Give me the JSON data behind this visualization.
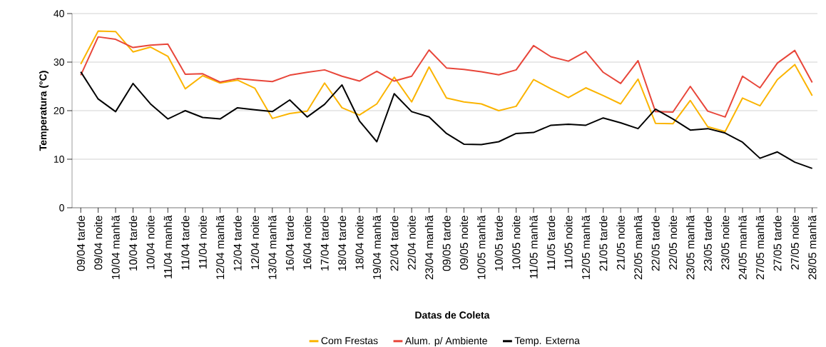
{
  "chart_data": {
    "type": "line",
    "xlabel": "Datas de Coleta",
    "ylabel": "Temperatura (°C)",
    "categories": [
      "09/04 tarde",
      "09/04 noite",
      "10/04 manhã",
      "10/04 tarde",
      "10/04 noite",
      "11/04 manhã",
      "11/04 tarde",
      "11/04 noite",
      "12/04 manhã",
      "12/04 tarde",
      "12/04 noite",
      "13/04 manhã",
      "16/04 tarde",
      "16/04 noite",
      "17/04 tarde",
      "18/04 tarde",
      "18/04 noite",
      "19/04 manhã",
      "22/04 tarde",
      "22/04 noite",
      "23/04 manhã",
      "09/05 tarde",
      "09/05 noite",
      "10/05 manhã",
      "10/05 tarde",
      "10/05 noite",
      "11/05 manhã",
      "11/05 tarde",
      "11/05 noite",
      "12/05 manhã",
      "21/05 tarde",
      "21/05 noite",
      "22/05 manhã",
      "22/05 tarde",
      "22/05 noite",
      "23/05 manhã",
      "23/05 tarde",
      "23/05 noite",
      "24/05 manhã",
      "27/05 manhã",
      "27/05 tarde",
      "27/05 noite",
      "28/05 manhã"
    ],
    "series": [
      {
        "name": "Com Frestas",
        "color": "#fbb400",
        "values": [
          29.6,
          36.4,
          36.3,
          32.1,
          33.1,
          31.2,
          24.5,
          27.2,
          25.7,
          26.3,
          24.6,
          18.4,
          19.4,
          19.9,
          25.7,
          20.6,
          19.1,
          21.4,
          26.9,
          21.8,
          29.0,
          22.6,
          21.8,
          21.4,
          20.0,
          20.9,
          26.4,
          24.5,
          22.7,
          24.7,
          23.1,
          21.4,
          26.5,
          17.4,
          17.3,
          22.1,
          16.7,
          15.7,
          22.6,
          21.0,
          26.4,
          29.5,
          23.1
        ]
      },
      {
        "name": "Alum. p/ Ambiente",
        "color": "#e8463a",
        "values": [
          27.3,
          35.2,
          34.7,
          33.0,
          33.5,
          33.7,
          27.5,
          27.6,
          25.9,
          26.6,
          26.3,
          26.0,
          27.3,
          27.9,
          28.4,
          27.1,
          26.1,
          28.1,
          26.1,
          27.1,
          32.5,
          28.8,
          28.5,
          28.0,
          27.4,
          28.4,
          33.4,
          31.1,
          30.2,
          32.2,
          27.9,
          25.6,
          30.3,
          19.8,
          19.7,
          25.0,
          19.9,
          18.7,
          27.1,
          24.7,
          29.8,
          32.4,
          25.8
        ]
      },
      {
        "name": "Temp. Externa",
        "color": "#000000",
        "values": [
          28.0,
          22.4,
          19.8,
          25.6,
          21.4,
          18.3,
          20.0,
          18.6,
          18.3,
          20.6,
          20.2,
          19.8,
          22.2,
          18.7,
          21.3,
          25.3,
          17.9,
          13.6,
          23.5,
          19.8,
          18.7,
          15.3,
          13.1,
          13.0,
          13.6,
          15.3,
          15.5,
          17.0,
          17.2,
          17.0,
          18.5,
          17.5,
          16.3,
          20.3,
          18.3,
          16.0,
          16.3,
          15.4,
          13.5,
          10.2,
          11.5,
          9.4,
          8.1
        ]
      }
    ],
    "ylim": [
      0,
      40
    ],
    "yticks": [
      0,
      10,
      20,
      30,
      40
    ],
    "grid": "y",
    "legend": "bottom",
    "marker": "none",
    "line_style": "solid"
  }
}
